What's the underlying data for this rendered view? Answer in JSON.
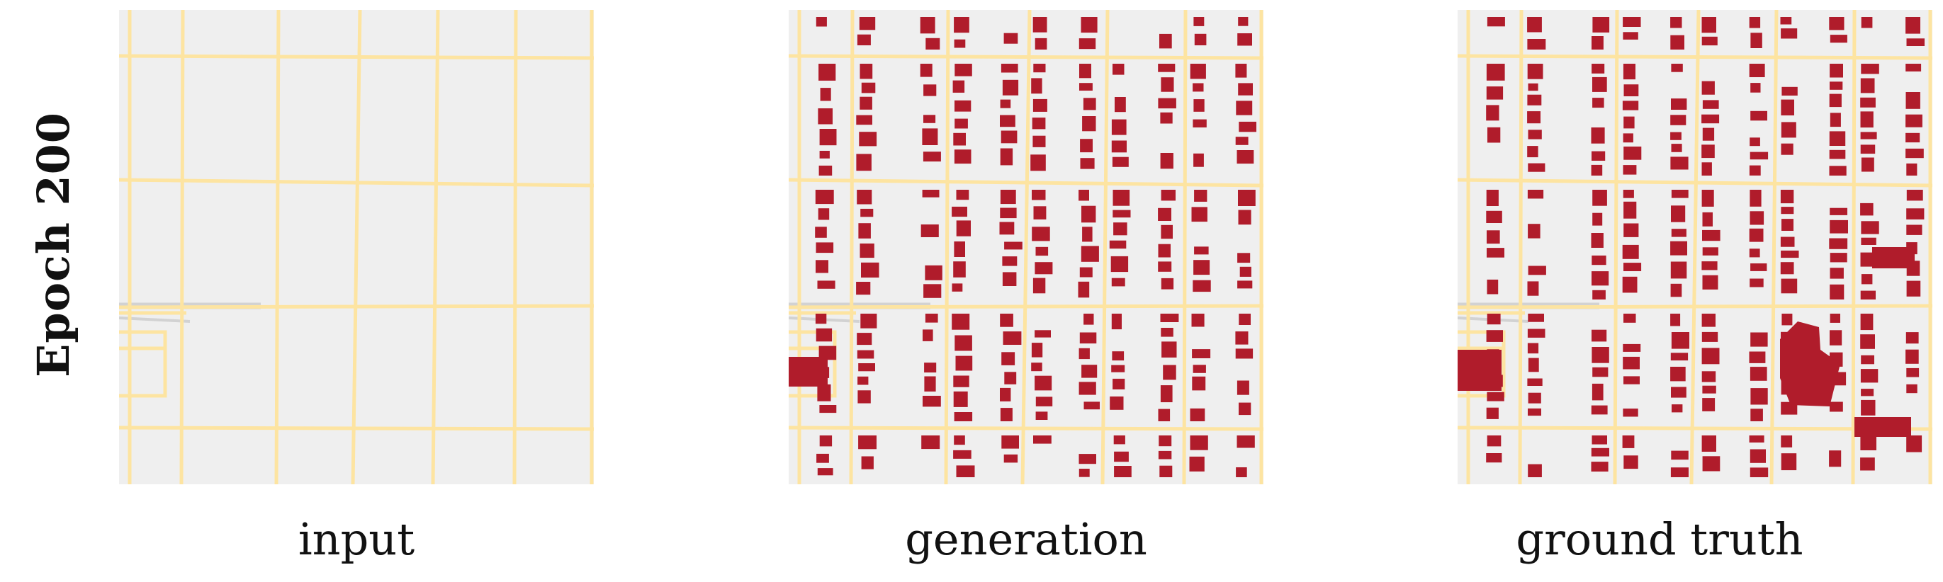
{
  "row_label": "Epoch 200",
  "panels": [
    {
      "caption": "input"
    },
    {
      "caption": "generation"
    },
    {
      "caption": "ground truth"
    }
  ],
  "colors": {
    "background": "#efefef",
    "road": "#fde4a1",
    "minor_road": "#d2d2d2",
    "building": "#b01c2b"
  }
}
